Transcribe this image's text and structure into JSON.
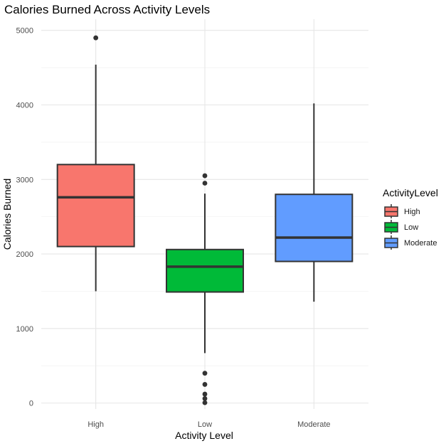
{
  "chart_data": {
    "type": "boxplot",
    "title": "Calories Burned Across Activity Levels",
    "xlabel": "Activity Level",
    "ylabel": "Calories Burned",
    "ylim": [
      -80,
      5150
    ],
    "yticks": [
      0,
      1000,
      2000,
      3000,
      4000,
      5000
    ],
    "yticks_labels": [
      "0",
      "1000",
      "2000",
      "3000",
      "4000",
      "5000"
    ],
    "categories": [
      "High",
      "Low",
      "Moderate"
    ],
    "legend": {
      "title": "ActivityLevel",
      "position": "right",
      "entries": [
        "High",
        "Low",
        "Moderate"
      ]
    },
    "boxes": [
      {
        "name": "High",
        "color": "#F8766D",
        "whisker_low": 1500,
        "q1": 2100,
        "median": 2760,
        "q3": 3200,
        "whisker_high": 4540,
        "outliers": [
          4900
        ]
      },
      {
        "name": "Low",
        "color": "#00BA38",
        "whisker_low": 670,
        "q1": 1490,
        "median": 1830,
        "q3": 2060,
        "whisker_high": 2810,
        "outliers": [
          3050,
          2950,
          400,
          250,
          120,
          60,
          5
        ]
      },
      {
        "name": "Moderate",
        "color": "#619CFF",
        "whisker_low": 1360,
        "q1": 1900,
        "median": 2220,
        "q3": 2800,
        "whisker_high": 4020,
        "outliers": []
      }
    ]
  }
}
